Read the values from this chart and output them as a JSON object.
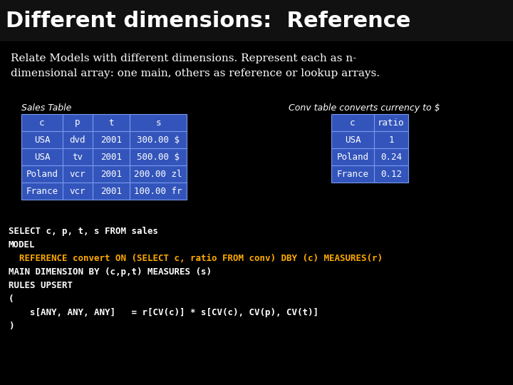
{
  "title": "Different dimensions:  Reference",
  "subtitle": "Relate Models with different dimensions. Represent each as n-\ndimensional array: one main, others as reference or lookup arrays.",
  "bg_color": "#000000",
  "title_color": "#ffffff",
  "subtitle_color": "#ffffff",
  "sales_table_label": "Sales Table",
  "conv_table_label": "Conv table converts currency to $",
  "sales_headers": [
    "c",
    "p",
    "t",
    "s"
  ],
  "sales_rows": [
    [
      "USA",
      "dvd",
      "2001",
      "300.00 $"
    ],
    [
      "USA",
      "tv",
      "2001",
      "500.00 $"
    ],
    [
      "Poland",
      "vcr",
      "2001",
      "200.00 zl"
    ],
    [
      "France",
      "vcr",
      "2001",
      "100.00 fr"
    ]
  ],
  "conv_headers": [
    "c",
    "ratio"
  ],
  "conv_rows": [
    [
      "USA",
      "1"
    ],
    [
      "Poland",
      "0.24"
    ],
    [
      "France",
      "0.12"
    ]
  ],
  "table_bg": "#3355bb",
  "table_fg": "#ffffff",
  "table_border_color": "#7799ee",
  "code_lines": [
    {
      "text": "SELECT c, p, t, s FROM sales",
      "color": "#ffffff"
    },
    {
      "text": "MODEL",
      "color": "#ffffff"
    },
    {
      "text": "  REFERENCE convert ON (SELECT c, ratio FROM conv) DBY (c) MEASURES(r)",
      "color": "#ffaa00"
    },
    {
      "text": "MAIN DIMENSION BY (c,p,t) MEASURES (s)",
      "color": "#ffffff"
    },
    {
      "text": "RULES UPSERT",
      "color": "#ffffff"
    },
    {
      "text": "(",
      "color": "#ffffff"
    },
    {
      "text": "    s[ANY, ANY, ANY]   = r[CV(c)] * s[CV(c), CV(p), CV(t)]",
      "color": "#ffffff"
    },
    {
      "text": ")",
      "color": "#ffffff"
    }
  ]
}
